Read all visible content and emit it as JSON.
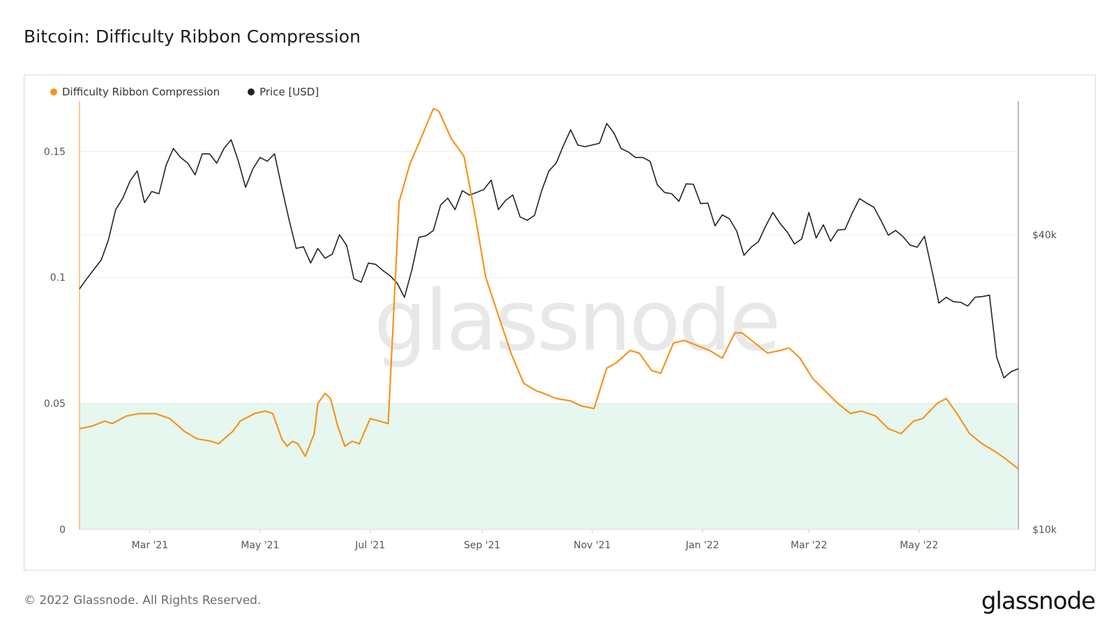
{
  "page_title": "Bitcoin: Difficulty Ribbon Compression",
  "footer": {
    "copyright": "© 2022 Glassnode. All Rights Reserved.",
    "logo_text": "glassnode"
  },
  "watermark_text": "glassnode",
  "colors": {
    "ribbon": "#f7931a",
    "price": "#222222",
    "zone_fill": "#e6f7ef",
    "grid": "#ececec"
  },
  "chart_data": {
    "type": "line",
    "title": "Bitcoin: Difficulty Ribbon Compression",
    "legend_placement": "top-left",
    "grid": true,
    "x_range": [
      "2021-01-21",
      "2022-06-25"
    ],
    "x_ticks": [
      {
        "date": "2021-03-01",
        "label": "Mar '21"
      },
      {
        "date": "2021-05-01",
        "label": "May '21"
      },
      {
        "date": "2021-07-01",
        "label": "Jul '21"
      },
      {
        "date": "2021-09-01",
        "label": "Sep '21"
      },
      {
        "date": "2021-11-01",
        "label": "Nov '21"
      },
      {
        "date": "2022-01-01",
        "label": "Jan '22"
      },
      {
        "date": "2022-03-01",
        "label": "Mar '22"
      },
      {
        "date": "2022-05-01",
        "label": "May '22"
      }
    ],
    "y_left": {
      "range": [
        0,
        0.17
      ],
      "ticks": [
        0,
        0.05,
        0.1,
        0.15
      ],
      "tick_labels": [
        "0",
        "0.05",
        "0.1",
        "0.15"
      ]
    },
    "y_right": {
      "scale": "log",
      "range": [
        10000,
        75000
      ],
      "ticks": [
        10000,
        40000
      ],
      "tick_labels": [
        "$10k",
        "$40k"
      ]
    },
    "zone": {
      "from": 0,
      "to": 0.05,
      "label": ""
    },
    "series": [
      {
        "name": "Difficulty Ribbon Compression",
        "axis": "left",
        "points": [
          [
            "2021-01-21",
            0.04
          ],
          [
            "2021-01-28",
            0.041
          ],
          [
            "2021-02-04",
            0.043
          ],
          [
            "2021-02-08",
            0.042
          ],
          [
            "2021-02-16",
            0.045
          ],
          [
            "2021-02-23",
            0.046
          ],
          [
            "2021-03-04",
            0.046
          ],
          [
            "2021-03-12",
            0.044
          ],
          [
            "2021-03-20",
            0.039
          ],
          [
            "2021-03-27",
            0.036
          ],
          [
            "2021-04-04",
            0.035
          ],
          [
            "2021-04-08",
            0.034
          ],
          [
            "2021-04-16",
            0.039
          ],
          [
            "2021-04-20",
            0.043
          ],
          [
            "2021-04-28",
            0.046
          ],
          [
            "2021-05-04",
            0.047
          ],
          [
            "2021-05-08",
            0.046
          ],
          [
            "2021-05-13",
            0.036
          ],
          [
            "2021-05-16",
            0.033
          ],
          [
            "2021-05-19",
            0.035
          ],
          [
            "2021-05-22",
            0.034
          ],
          [
            "2021-05-26",
            0.029
          ],
          [
            "2021-05-31",
            0.038
          ],
          [
            "2021-06-02",
            0.05
          ],
          [
            "2021-06-06",
            0.054
          ],
          [
            "2021-06-09",
            0.052
          ],
          [
            "2021-06-13",
            0.041
          ],
          [
            "2021-06-17",
            0.033
          ],
          [
            "2021-06-21",
            0.035
          ],
          [
            "2021-06-25",
            0.034
          ],
          [
            "2021-07-01",
            0.044
          ],
          [
            "2021-07-06",
            0.043
          ],
          [
            "2021-07-11",
            0.042
          ],
          [
            "2021-07-17",
            0.13
          ],
          [
            "2021-07-23",
            0.145
          ],
          [
            "2021-07-29",
            0.155
          ],
          [
            "2021-08-05",
            0.167
          ],
          [
            "2021-08-08",
            0.166
          ],
          [
            "2021-08-15",
            0.155
          ],
          [
            "2021-08-22",
            0.148
          ],
          [
            "2021-08-28",
            0.125
          ],
          [
            "2021-09-03",
            0.1
          ],
          [
            "2021-09-10",
            0.085
          ],
          [
            "2021-09-17",
            0.07
          ],
          [
            "2021-09-24",
            0.058
          ],
          [
            "2021-10-01",
            0.055
          ],
          [
            "2021-10-05",
            0.054
          ],
          [
            "2021-10-12",
            0.052
          ],
          [
            "2021-10-20",
            0.051
          ],
          [
            "2021-10-26",
            0.049
          ],
          [
            "2021-11-02",
            0.048
          ],
          [
            "2021-11-09",
            0.064
          ],
          [
            "2021-11-14",
            0.066
          ],
          [
            "2021-11-22",
            0.071
          ],
          [
            "2021-11-27",
            0.07
          ],
          [
            "2021-12-04",
            0.063
          ],
          [
            "2021-12-09",
            0.062
          ],
          [
            "2021-12-16",
            0.074
          ],
          [
            "2021-12-22",
            0.075
          ],
          [
            "2021-12-29",
            0.073
          ],
          [
            "2022-01-05",
            0.071
          ],
          [
            "2022-01-12",
            0.068
          ],
          [
            "2022-01-19",
            0.078
          ],
          [
            "2022-01-23",
            0.078
          ],
          [
            "2022-01-30",
            0.074
          ],
          [
            "2022-02-06",
            0.07
          ],
          [
            "2022-02-13",
            0.071
          ],
          [
            "2022-02-18",
            0.072
          ],
          [
            "2022-02-24",
            0.068
          ],
          [
            "2022-03-03",
            0.06
          ],
          [
            "2022-03-10",
            0.055
          ],
          [
            "2022-03-17",
            0.05
          ],
          [
            "2022-03-24",
            0.046
          ],
          [
            "2022-03-30",
            0.047
          ],
          [
            "2022-04-07",
            0.045
          ],
          [
            "2022-04-14",
            0.04
          ],
          [
            "2022-04-21",
            0.038
          ],
          [
            "2022-04-28",
            0.043
          ],
          [
            "2022-05-03",
            0.044
          ],
          [
            "2022-05-11",
            0.05
          ],
          [
            "2022-05-16",
            0.052
          ],
          [
            "2022-05-22",
            0.046
          ],
          [
            "2022-05-29",
            0.038
          ],
          [
            "2022-06-05",
            0.034
          ],
          [
            "2022-06-12",
            0.031
          ],
          [
            "2022-06-18",
            0.028
          ],
          [
            "2022-06-25",
            0.024
          ]
        ]
      },
      {
        "name": "Price [USD]",
        "axis": "right",
        "points": [
          [
            "2021-01-21",
            31000
          ],
          [
            "2021-01-25",
            32500
          ],
          [
            "2021-01-29",
            34000
          ],
          [
            "2021-02-02",
            35500
          ],
          [
            "2021-02-06",
            39000
          ],
          [
            "2021-02-10",
            45000
          ],
          [
            "2021-02-14",
            47500
          ],
          [
            "2021-02-18",
            51500
          ],
          [
            "2021-02-22",
            54000
          ],
          [
            "2021-02-26",
            46500
          ],
          [
            "2021-03-02",
            49000
          ],
          [
            "2021-03-06",
            48500
          ],
          [
            "2021-03-10",
            55500
          ],
          [
            "2021-03-14",
            60000
          ],
          [
            "2021-03-18",
            57500
          ],
          [
            "2021-03-22",
            56000
          ],
          [
            "2021-03-26",
            53000
          ],
          [
            "2021-03-30",
            58500
          ],
          [
            "2021-04-03",
            58500
          ],
          [
            "2021-04-07",
            56000
          ],
          [
            "2021-04-11",
            60000
          ],
          [
            "2021-04-15",
            62500
          ],
          [
            "2021-04-19",
            56500
          ],
          [
            "2021-04-23",
            50000
          ],
          [
            "2021-04-27",
            54500
          ],
          [
            "2021-05-01",
            57500
          ],
          [
            "2021-05-05",
            56500
          ],
          [
            "2021-05-09",
            58500
          ],
          [
            "2021-05-13",
            50000
          ],
          [
            "2021-05-17",
            43000
          ],
          [
            "2021-05-21",
            37500
          ],
          [
            "2021-05-25",
            37800
          ],
          [
            "2021-05-29",
            35000
          ],
          [
            "2021-06-02",
            37500
          ],
          [
            "2021-06-06",
            35800
          ],
          [
            "2021-06-10",
            36500
          ],
          [
            "2021-06-14",
            40000
          ],
          [
            "2021-06-18",
            38000
          ],
          [
            "2021-06-22",
            32500
          ],
          [
            "2021-06-26",
            32000
          ],
          [
            "2021-06-30",
            35000
          ],
          [
            "2021-07-04",
            34800
          ],
          [
            "2021-07-08",
            33800
          ],
          [
            "2021-07-12",
            33000
          ],
          [
            "2021-07-16",
            31800
          ],
          [
            "2021-07-20",
            29800
          ],
          [
            "2021-07-24",
            33800
          ],
          [
            "2021-07-28",
            39500
          ],
          [
            "2021-08-01",
            39800
          ],
          [
            "2021-08-05",
            40800
          ],
          [
            "2021-08-09",
            46000
          ],
          [
            "2021-08-13",
            47500
          ],
          [
            "2021-08-17",
            45000
          ],
          [
            "2021-08-21",
            49200
          ],
          [
            "2021-08-25",
            48200
          ],
          [
            "2021-08-29",
            48800
          ],
          [
            "2021-09-02",
            49500
          ],
          [
            "2021-09-06",
            51700
          ],
          [
            "2021-09-10",
            45000
          ],
          [
            "2021-09-14",
            47000
          ],
          [
            "2021-09-18",
            48200
          ],
          [
            "2021-09-22",
            43500
          ],
          [
            "2021-09-26",
            42800
          ],
          [
            "2021-09-30",
            43800
          ],
          [
            "2021-10-04",
            49200
          ],
          [
            "2021-10-08",
            54000
          ],
          [
            "2021-10-12",
            56000
          ],
          [
            "2021-10-16",
            60800
          ],
          [
            "2021-10-20",
            65500
          ],
          [
            "2021-10-24",
            61000
          ],
          [
            "2021-10-28",
            60500
          ],
          [
            "2021-11-01",
            61000
          ],
          [
            "2021-11-05",
            61500
          ],
          [
            "2021-11-09",
            67500
          ],
          [
            "2021-11-13",
            64500
          ],
          [
            "2021-11-17",
            60000
          ],
          [
            "2021-11-21",
            59000
          ],
          [
            "2021-11-25",
            57500
          ],
          [
            "2021-11-29",
            57500
          ],
          [
            "2021-12-03",
            56500
          ],
          [
            "2021-12-07",
            50600
          ],
          [
            "2021-12-11",
            48800
          ],
          [
            "2021-12-15",
            48500
          ],
          [
            "2021-12-19",
            46800
          ],
          [
            "2021-12-23",
            50800
          ],
          [
            "2021-12-27",
            50700
          ],
          [
            "2021-12-31",
            46300
          ],
          [
            "2022-01-04",
            46400
          ],
          [
            "2022-01-08",
            41700
          ],
          [
            "2022-01-12",
            43900
          ],
          [
            "2022-01-16",
            43100
          ],
          [
            "2022-01-20",
            40700
          ],
          [
            "2022-01-24",
            36300
          ],
          [
            "2022-01-28",
            37700
          ],
          [
            "2022-02-01",
            38700
          ],
          [
            "2022-02-05",
            41600
          ],
          [
            "2022-02-09",
            44400
          ],
          [
            "2022-02-13",
            42200
          ],
          [
            "2022-02-17",
            40500
          ],
          [
            "2022-02-21",
            38300
          ],
          [
            "2022-02-25",
            39200
          ],
          [
            "2022-03-01",
            44400
          ],
          [
            "2022-03-05",
            39400
          ],
          [
            "2022-03-09",
            41900
          ],
          [
            "2022-03-13",
            38800
          ],
          [
            "2022-03-17",
            40900
          ],
          [
            "2022-03-21",
            41000
          ],
          [
            "2022-03-25",
            44300
          ],
          [
            "2022-03-29",
            47400
          ],
          [
            "2022-04-02",
            46400
          ],
          [
            "2022-04-06",
            45500
          ],
          [
            "2022-04-10",
            42700
          ],
          [
            "2022-04-14",
            39900
          ],
          [
            "2022-04-18",
            40800
          ],
          [
            "2022-04-22",
            39700
          ],
          [
            "2022-04-26",
            38100
          ],
          [
            "2022-04-30",
            37700
          ],
          [
            "2022-05-04",
            39700
          ],
          [
            "2022-05-08",
            34000
          ],
          [
            "2022-05-12",
            29000
          ],
          [
            "2022-05-16",
            29800
          ],
          [
            "2022-05-20",
            29200
          ],
          [
            "2022-05-24",
            29100
          ],
          [
            "2022-05-28",
            28600
          ],
          [
            "2022-06-01",
            29800
          ],
          [
            "2022-06-05",
            29900
          ],
          [
            "2022-06-09",
            30100
          ],
          [
            "2022-06-13",
            22500
          ],
          [
            "2022-06-17",
            20400
          ],
          [
            "2022-06-21",
            21000
          ],
          [
            "2022-06-25",
            21300
          ]
        ]
      }
    ]
  }
}
